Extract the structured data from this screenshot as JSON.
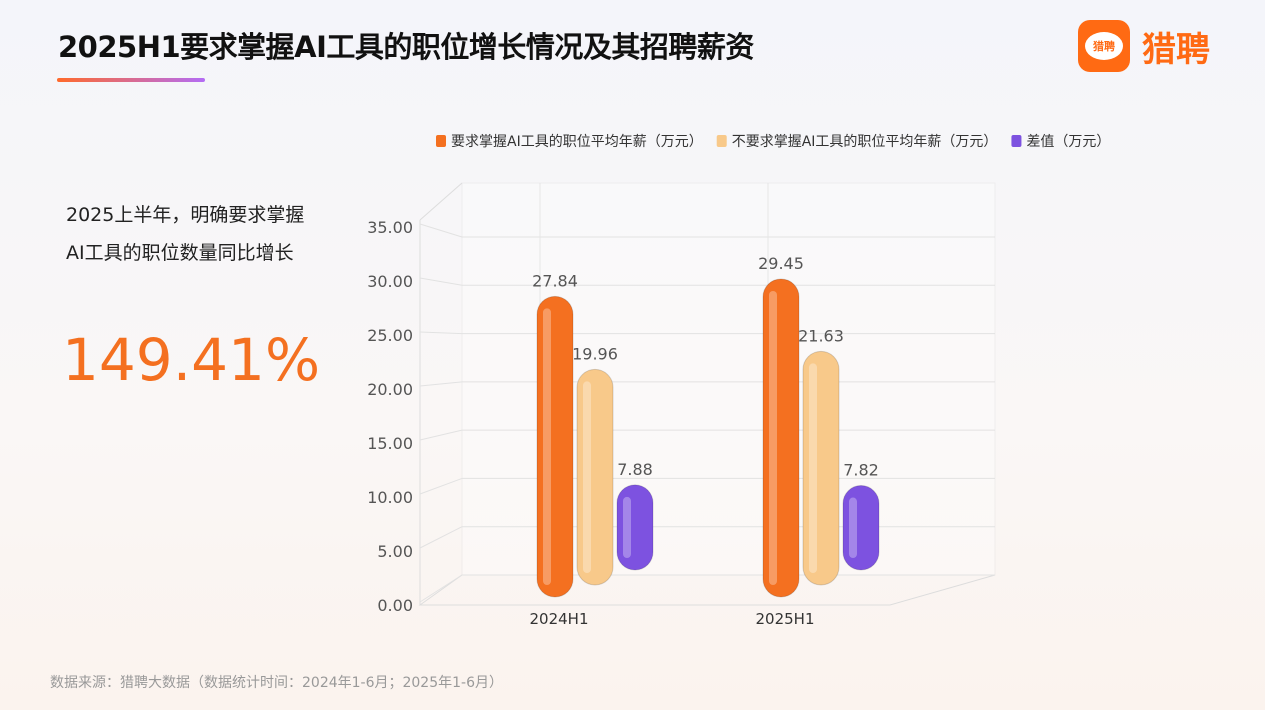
{
  "title": "2025H1要求掌握AI工具的职位增长情况及其招聘薪资",
  "logo": {
    "icon_text": "猎聘",
    "text": "猎聘"
  },
  "highlight": {
    "description": "2025上半年，明确要求掌握AI工具的职位数量同比增长",
    "value": "149.41%"
  },
  "source": "数据来源：猎聘大数据（数据统计时间：2024年1-6月；2025年1-6月）",
  "chart_data": {
    "type": "bar",
    "style": "3d-cylinder",
    "categories": [
      "2024H1",
      "2025H1"
    ],
    "series": [
      {
        "name": "要求掌握AI工具的职位平均年薪（万元）",
        "values": [
          27.84,
          29.45
        ],
        "labels": [
          "27.84",
          "29.45"
        ],
        "color": "#f47020"
      },
      {
        "name": "不要求掌握AI工具的职位平均年薪（万元）",
        "values": [
          19.96,
          21.63
        ],
        "labels": [
          "19.96",
          "21.63"
        ],
        "color": "#f8c98a"
      },
      {
        "name": "差值（万元）",
        "values": [
          7.88,
          7.82
        ],
        "labels": [
          "7.88",
          "7.82"
        ],
        "color": "#7d52e0"
      }
    ],
    "ylim": [
      0,
      35
    ],
    "yticks": [
      "0.00",
      "5.00",
      "10.00",
      "15.00",
      "20.00",
      "25.00",
      "30.00",
      "35.00"
    ],
    "legend": "top",
    "grid": true
  }
}
